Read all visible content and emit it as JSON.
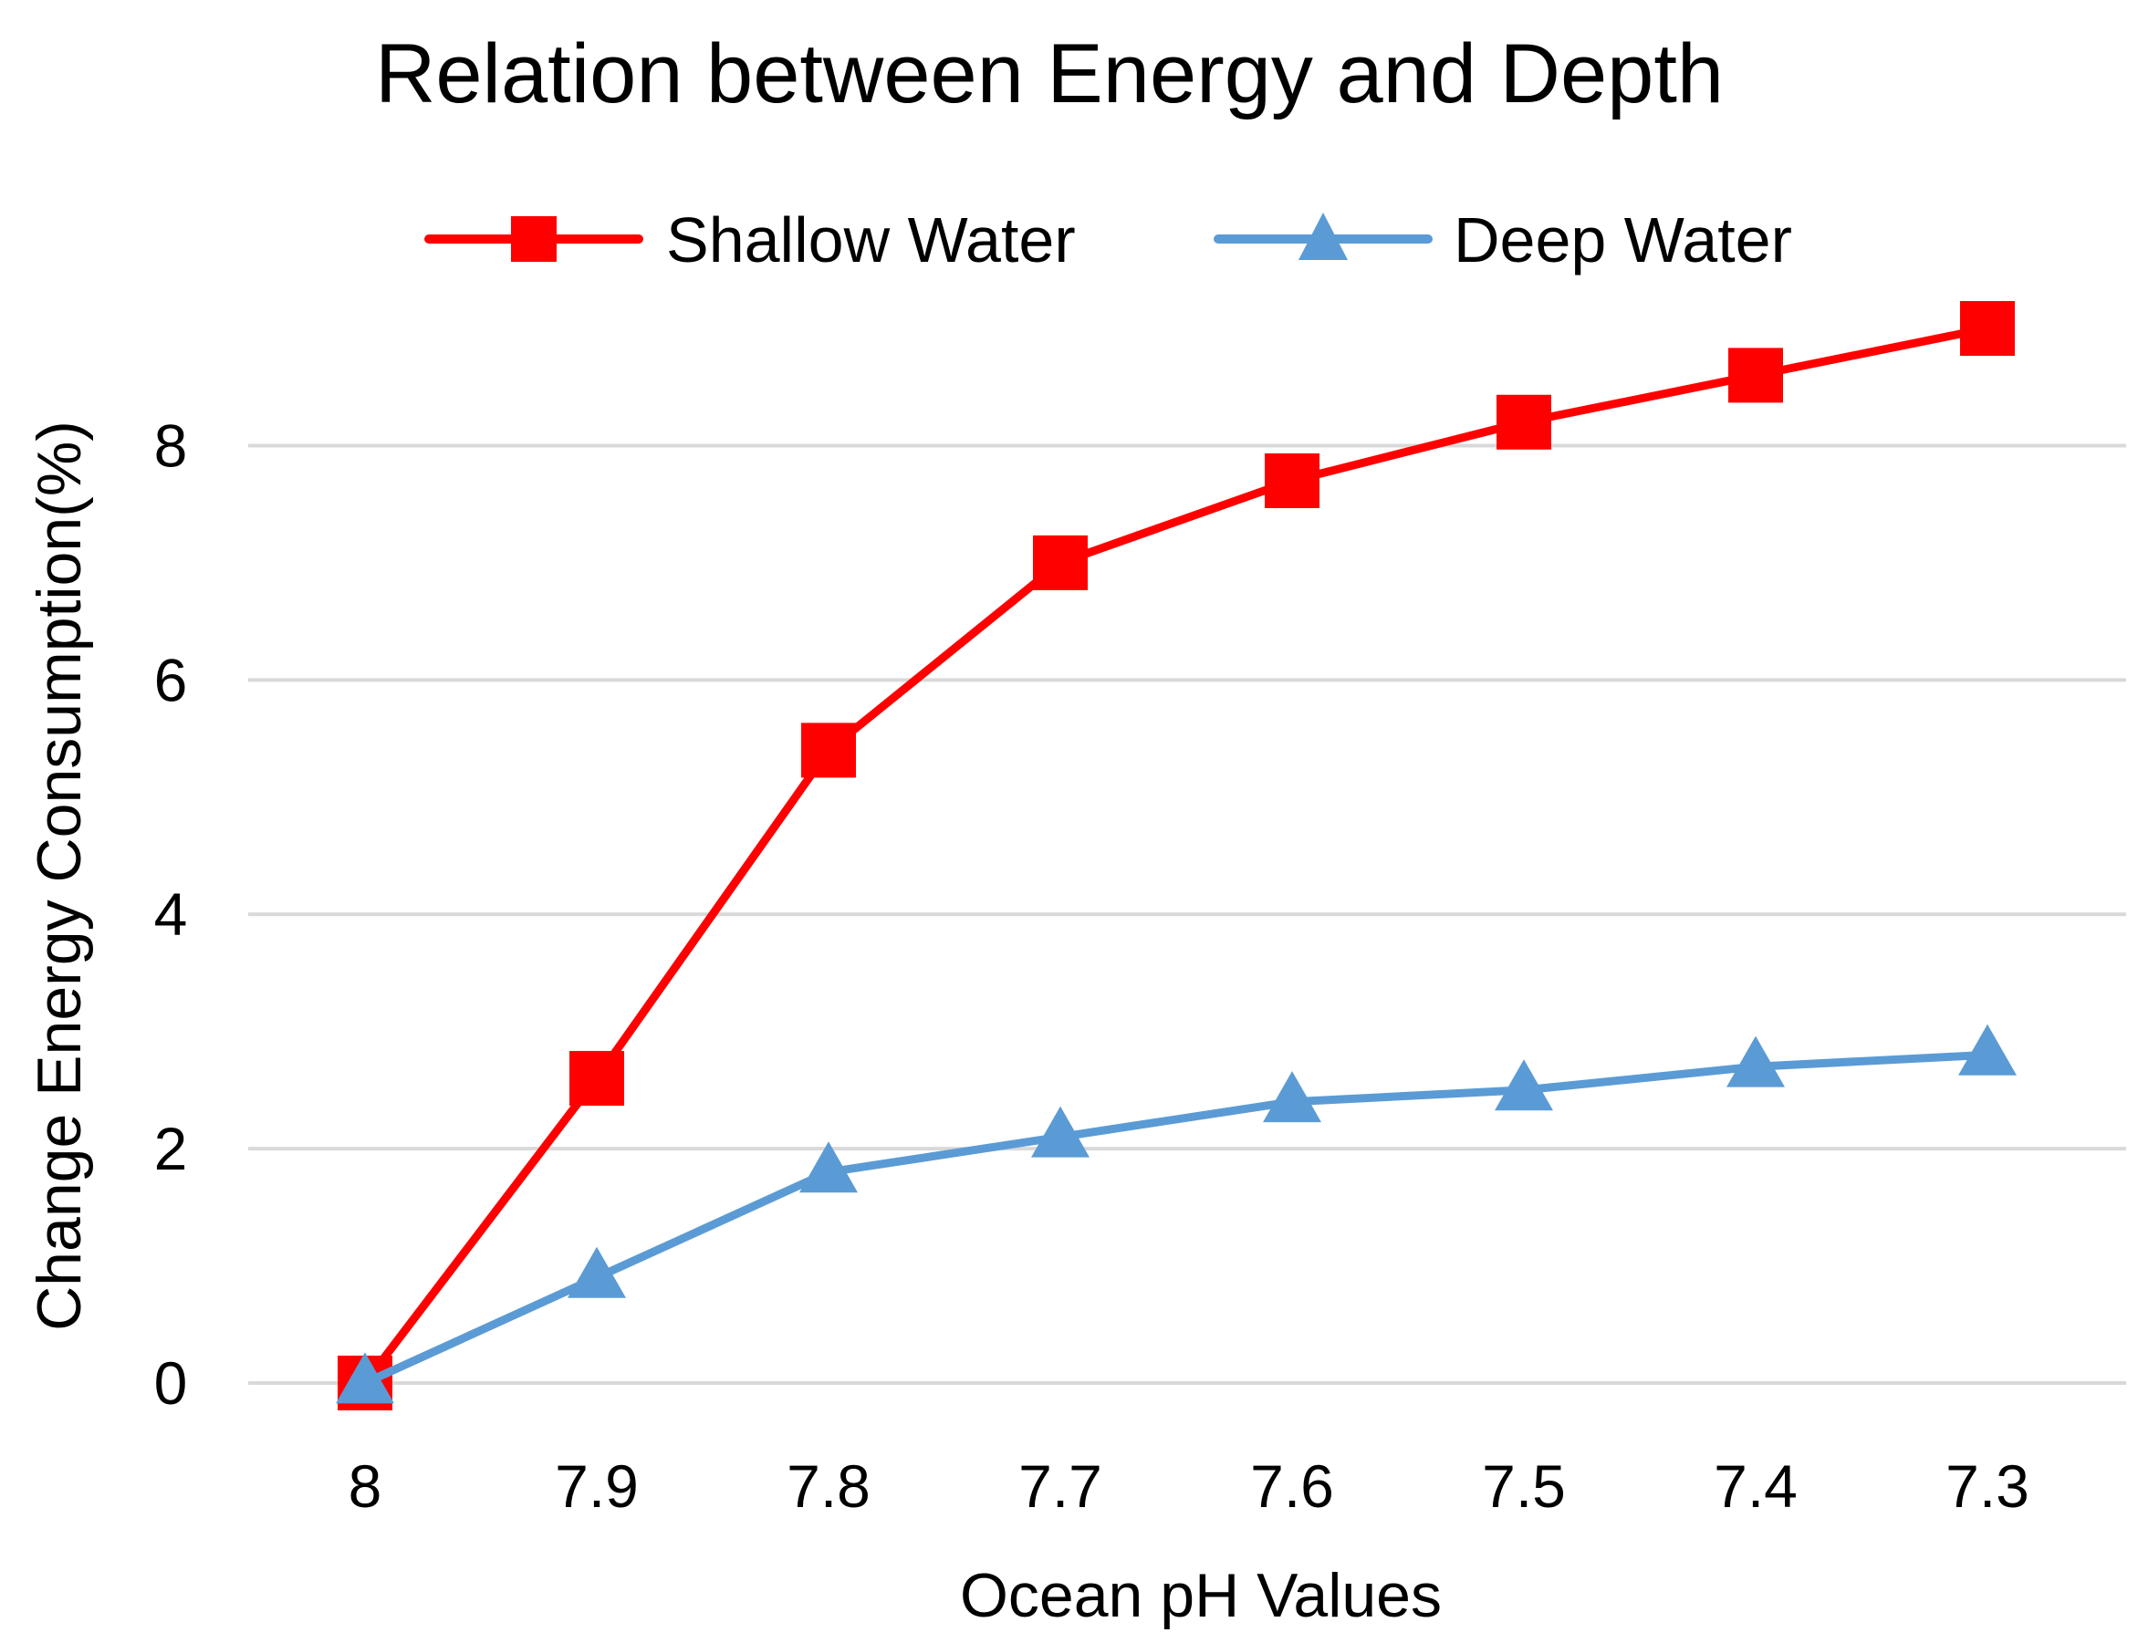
{
  "chart_data": {
    "type": "line",
    "title": "Relation between Energy and Depth",
    "xlabel": "Ocean pH Values",
    "ylabel": "Change Energy Consumption(%)",
    "categories": [
      "8",
      "7.9",
      "7.8",
      "7.7",
      "7.6",
      "7.5",
      "7.4",
      "7.3"
    ],
    "ylim": [
      0,
      9
    ],
    "yticks": [
      0,
      2,
      4,
      6,
      8
    ],
    "ytick_labels": [
      "0",
      "2",
      "4",
      "6",
      "8"
    ],
    "grid": true,
    "legend_position": "top-center",
    "series": [
      {
        "name": "Shallow Water",
        "color": "#ff0000",
        "marker": "square",
        "values": [
          0,
          2.6,
          5.4,
          7.0,
          7.7,
          8.2,
          8.6,
          9.0
        ]
      },
      {
        "name": "Deep Water",
        "color": "#5b9bd5",
        "marker": "triangle",
        "values": [
          0,
          0.9,
          1.8,
          2.1,
          2.4,
          2.5,
          2.7,
          2.8
        ]
      }
    ]
  }
}
